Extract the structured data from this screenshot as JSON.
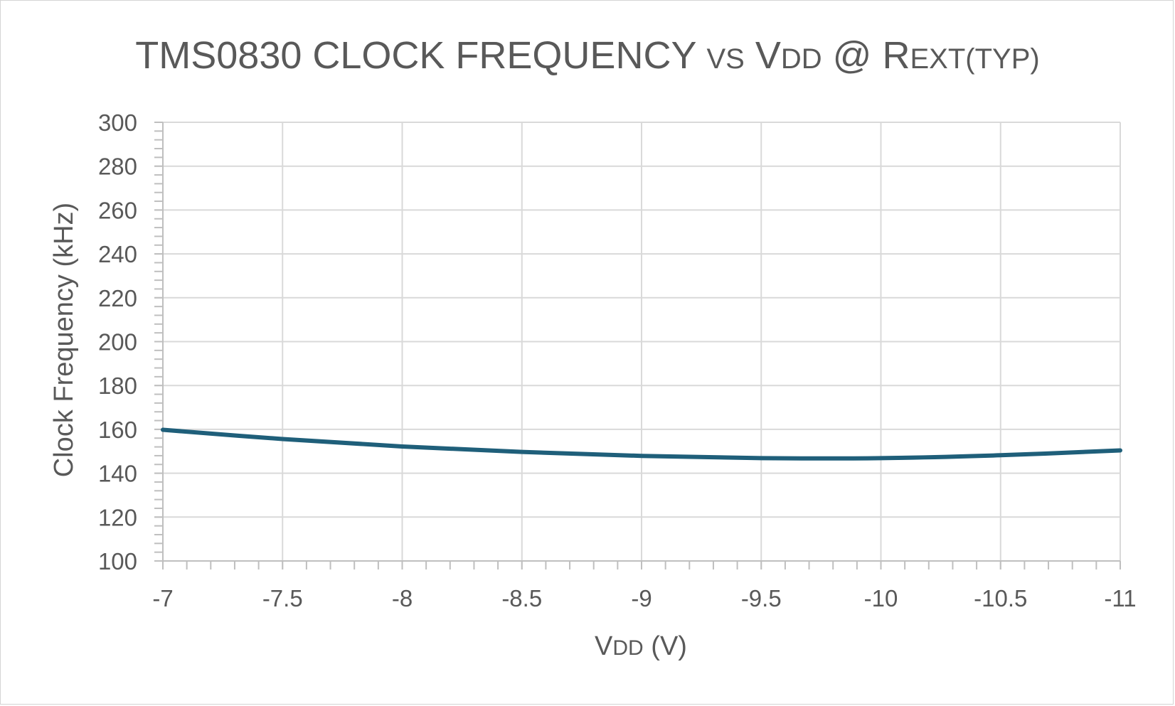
{
  "chart_data": {
    "type": "line",
    "title": {
      "parts": [
        {
          "text": "TMS0830 CLOCK FREQUENCY ",
          "style": "large"
        },
        {
          "text": "VS",
          "style": "small"
        },
        {
          "text": " V",
          "style": "large"
        },
        {
          "text": "DD",
          "style": "small"
        },
        {
          "text": " @ R",
          "style": "large"
        },
        {
          "text": "EXT(TYP)",
          "style": "small"
        }
      ]
    },
    "xlabel": {
      "parts": [
        {
          "text": "V",
          "style": "large"
        },
        {
          "text": "DD",
          "style": "small"
        },
        {
          "text": " (V)",
          "style": "large"
        }
      ]
    },
    "ylabel": "Clock Frequency (kHz)",
    "xlim": [
      -7,
      -11
    ],
    "ylim": [
      100,
      300
    ],
    "x_ticks": [
      -7,
      -7.5,
      -8,
      -8.5,
      -9,
      -9.5,
      -10,
      -10.5,
      -11
    ],
    "x_tick_labels": [
      "-7",
      "-7.5",
      "-8",
      "-8.5",
      "-9",
      "-9.5",
      "-10",
      "-10.5",
      "-11"
    ],
    "y_ticks": [
      100,
      120,
      140,
      160,
      180,
      200,
      220,
      240,
      260,
      280,
      300
    ],
    "y_tick_labels": [
      "100",
      "120",
      "140",
      "160",
      "180",
      "200",
      "220",
      "240",
      "260",
      "280",
      "300"
    ],
    "grid": true,
    "legend": "none",
    "series": [
      {
        "color": "#1f5f7a",
        "x": [
          -7,
          -7.5,
          -8,
          -8.5,
          -9,
          -9.5,
          -10,
          -10.5,
          -11
        ],
        "y": [
          159.8,
          155.6,
          152.2,
          149.7,
          147.9,
          146.9,
          146.9,
          148.2,
          150.4
        ]
      }
    ]
  }
}
